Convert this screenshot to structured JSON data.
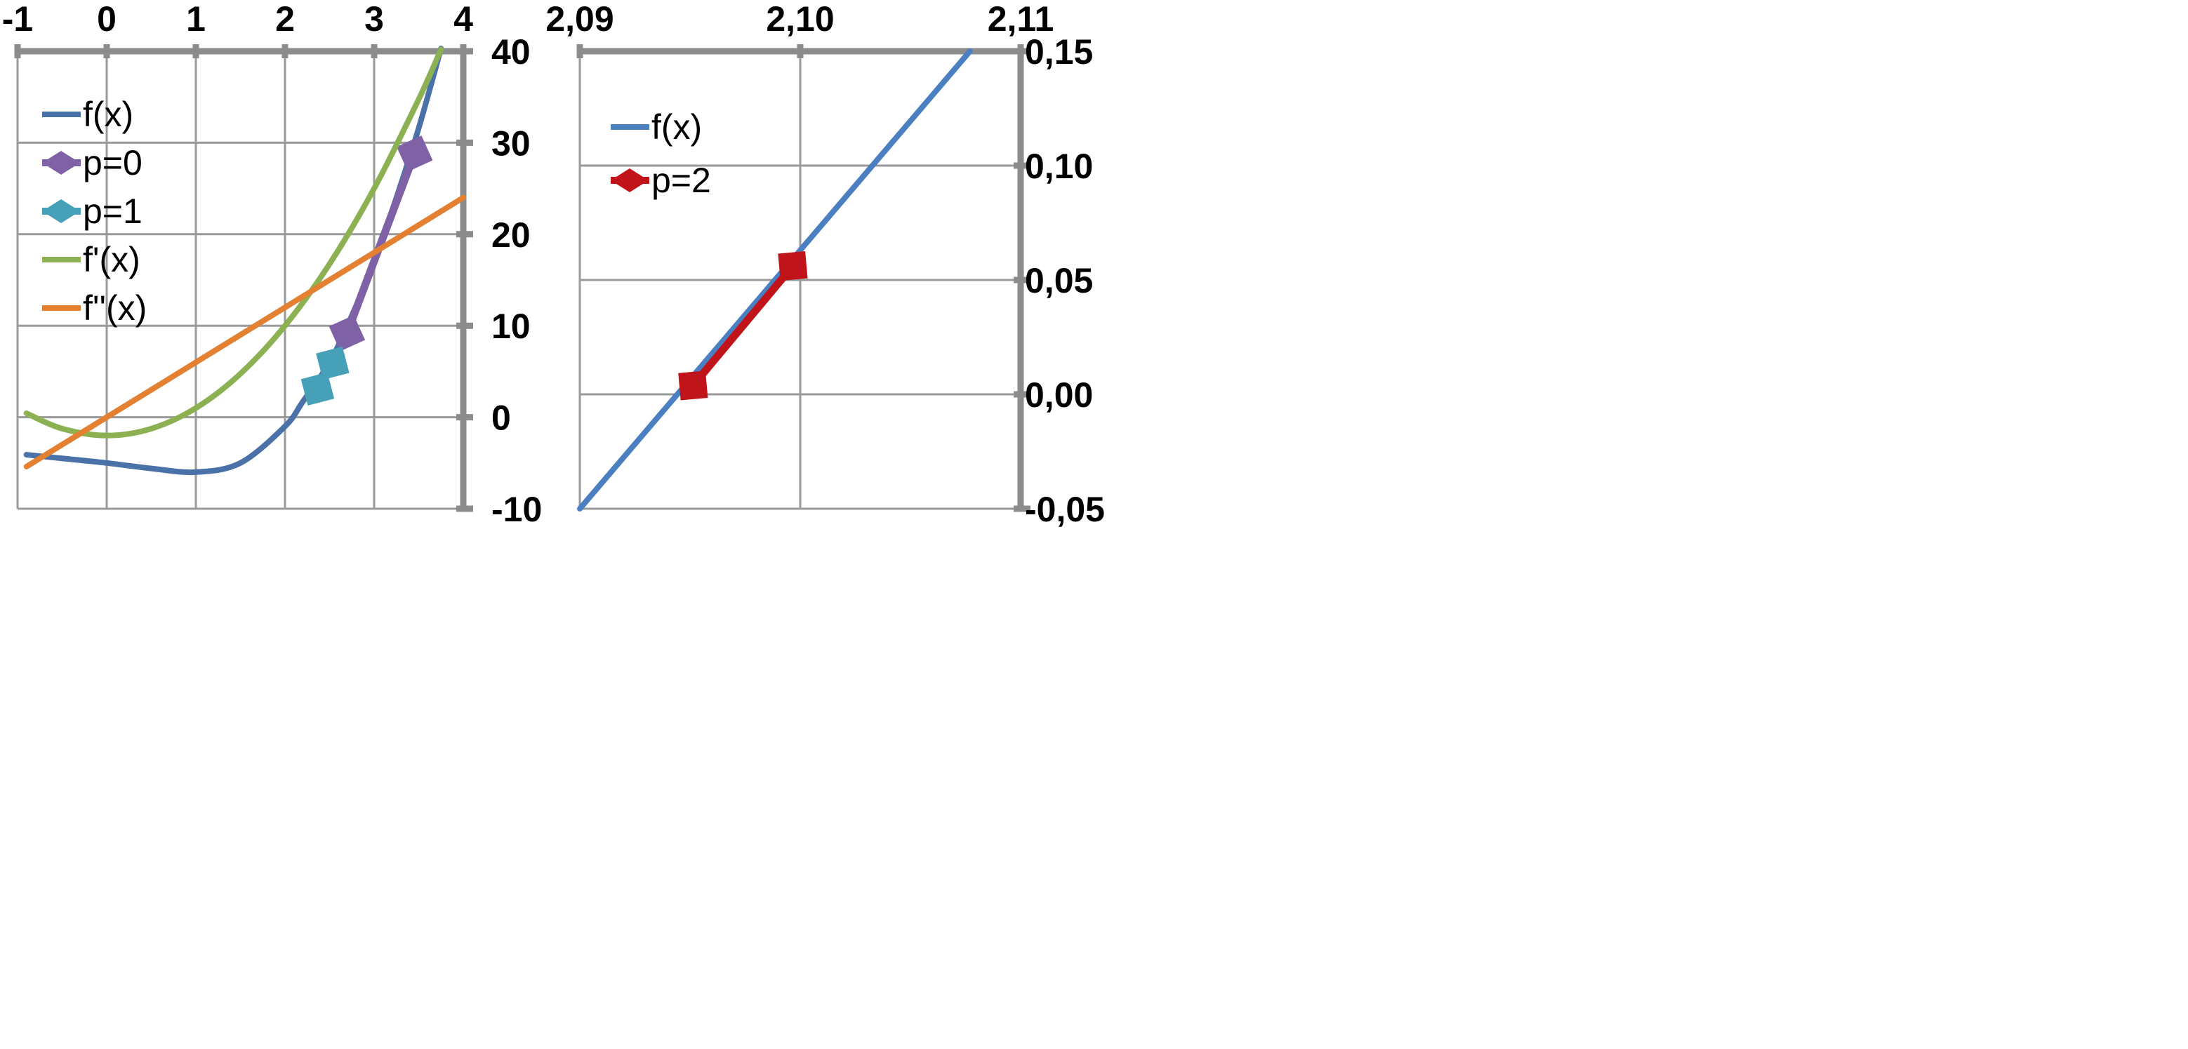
{
  "chart_data": [
    {
      "type": "line",
      "x_ticks": [
        "-1",
        "0",
        "1",
        "2",
        "3",
        "4"
      ],
      "y_ticks": [
        "-10",
        "0",
        "10",
        "20",
        "30",
        "40"
      ],
      "xlim": [
        -1,
        4
      ],
      "ylim": [
        -10,
        40
      ],
      "x_axis_position": "top",
      "y_axis_position": "right",
      "grid": true,
      "legend_position": "left",
      "series": [
        {
          "name": "f(x)",
          "color": "#4a72a8",
          "marker": "none",
          "x": [
            -0.9,
            -0.5,
            0,
            0.5,
            1,
            1.5,
            2,
            2.2,
            2.5,
            2.75,
            3,
            3.25,
            3.5,
            3.75
          ],
          "y": [
            -4.1,
            -4.5,
            -5,
            -5.6,
            -6,
            -5.0,
            -1,
            1.7,
            6.0,
            11.1,
            17.0,
            24.0,
            31.6,
            40.3
          ]
        },
        {
          "name": "p=0",
          "color": "#7f62a6",
          "marker": "diamond",
          "x": [
            3.5,
            2.65
          ],
          "y": [
            30,
            8
          ]
        },
        {
          "name": "p=1",
          "color": "#46a0b8",
          "marker": "diamond",
          "x": [
            2.6,
            2.3
          ],
          "y": [
            7,
            2
          ]
        },
        {
          "name": "f'(x)",
          "color": "#8bb153",
          "marker": "none",
          "x": [
            -0.9,
            -0.5,
            0,
            0.5,
            1,
            1.5,
            2,
            2.5,
            3,
            3.5,
            3.75
          ],
          "y": [
            0.43,
            -1.25,
            -2,
            -1.25,
            1,
            4.75,
            10,
            16.75,
            25,
            34.75,
            40.2
          ]
        },
        {
          "name": "f''(x)",
          "color": "#e38031",
          "marker": "none",
          "x": [
            -0.9,
            4
          ],
          "y": [
            -5.4,
            24
          ]
        }
      ]
    },
    {
      "type": "line",
      "x_ticks": [
        "2,09",
        "2,10",
        "2,11"
      ],
      "y_ticks": [
        "-0,05",
        "0,00",
        "0,05",
        "0,10",
        "0,15"
      ],
      "xlim": [
        2.09,
        2.11
      ],
      "ylim": [
        -0.05,
        0.15
      ],
      "x_axis_position": "top",
      "y_axis_position": "right",
      "grid": true,
      "legend_position": "left",
      "series": [
        {
          "name": "f(x)",
          "color": "#4a7fc1",
          "marker": "none",
          "x": [
            2.09,
            2.1077
          ],
          "y": [
            -0.05,
            0.15
          ]
        },
        {
          "name": "p=2",
          "color": "#c0141a",
          "marker": "diamond",
          "x": [
            2.1,
            2.0948
          ],
          "y": [
            0.06,
            0.0
          ]
        }
      ]
    }
  ]
}
